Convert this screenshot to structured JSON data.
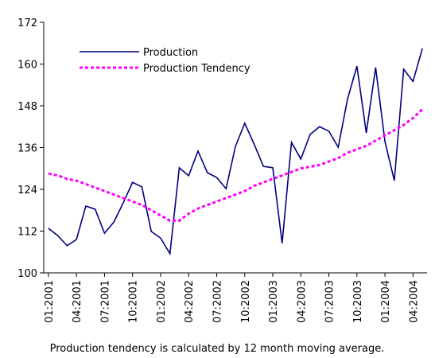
{
  "chart_data": {
    "type": "line",
    "categories": [
      "01:2001",
      null,
      null,
      "04:2001",
      null,
      null,
      "07:2001",
      null,
      null,
      "10:2001",
      null,
      null,
      "01:2002",
      null,
      null,
      "04:2002",
      null,
      null,
      "07:2002",
      null,
      null,
      "10:2002",
      null,
      null,
      "01:2003",
      null,
      null,
      "04:2003",
      null,
      null,
      "07:2003",
      null,
      null,
      "10:2003",
      null,
      null,
      "01:2004",
      null,
      null,
      "04:2004",
      null
    ],
    "series": [
      {
        "name": "Production",
        "color": "#000080",
        "style": "solid",
        "values": [
          112.8,
          110.7,
          107.8,
          109.6,
          119.2,
          118.3,
          111.4,
          114.6,
          120.1,
          126,
          124.7,
          111.9,
          110,
          105.5,
          130.2,
          127.9,
          135,
          128.8,
          127.4,
          124.2,
          136.3,
          143,
          137,
          130.6,
          130.2,
          108.5,
          137.5,
          132.7,
          139.8,
          142,
          140.7,
          136.1,
          150,
          159.4,
          140.2,
          159,
          137.7,
          126.5,
          158.5,
          155,
          164.5
        ]
      },
      {
        "name": "Production Tendency",
        "color": "#ff00ff",
        "style": "dotted",
        "values": [
          128.5,
          128,
          127,
          126.5,
          125.5,
          124.5,
          123.5,
          122.5,
          121.5,
          120.5,
          119.5,
          118,
          116.5,
          115,
          115,
          117,
          118.5,
          119.5,
          120.5,
          121.5,
          122.5,
          123.5,
          125,
          126,
          127,
          128,
          129,
          130,
          130.5,
          131,
          132,
          133,
          134.5,
          135.5,
          136.5,
          138,
          139.5,
          141,
          142.5,
          144.5,
          147
        ]
      }
    ],
    "ylim": [
      100,
      172
    ],
    "yticks": [
      100,
      112,
      124,
      136,
      148,
      160,
      172
    ],
    "note": "Production tendency is calculated by 12 month moving average."
  }
}
